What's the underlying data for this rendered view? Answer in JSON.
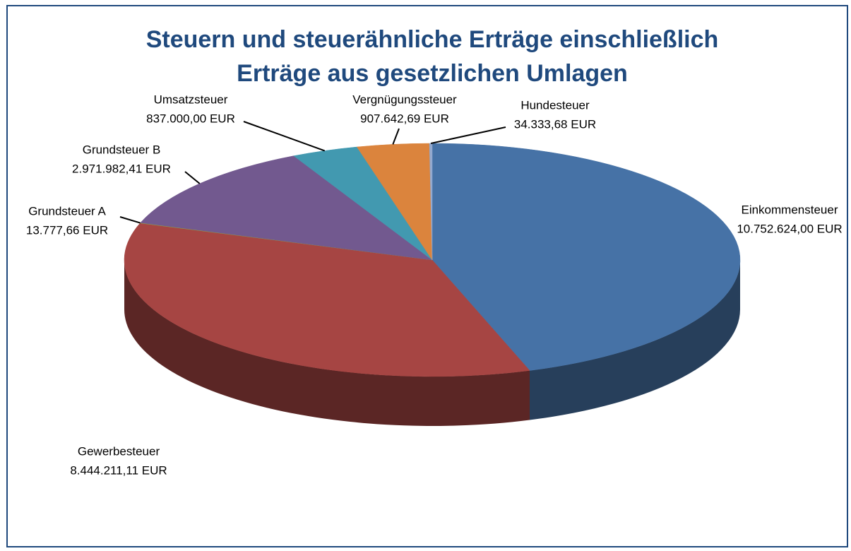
{
  "chart_data": {
    "type": "pie",
    "title": [
      "Steuern und steuerähnliche Erträge einschließlich",
      "Erträge aus gesetzlichen Umlagen"
    ],
    "categories": [
      "Einkommensteuer",
      "Gewerbesteuer",
      "Grundsteuer A",
      "Grundsteuer B",
      "Umsatzsteuer",
      "Vergnügungssteuer",
      "Hundesteuer"
    ],
    "values": [
      10752624.0,
      8444211.11,
      13777.66,
      2971982.41,
      837000.0,
      907642.69,
      34333.68
    ],
    "value_labels": [
      "10.752.624,00 EUR",
      "8.444.211,11 EUR",
      "13.777,66 EUR",
      "2.971.982,41 EUR",
      "837.000,00 EUR",
      "907.642,69 EUR",
      "34.333,68 EUR"
    ],
    "colors": [
      "#4672a6",
      "#a64543",
      "#8aa64b",
      "#72598f",
      "#4299b0",
      "#db843d",
      "#93a9cf"
    ]
  }
}
